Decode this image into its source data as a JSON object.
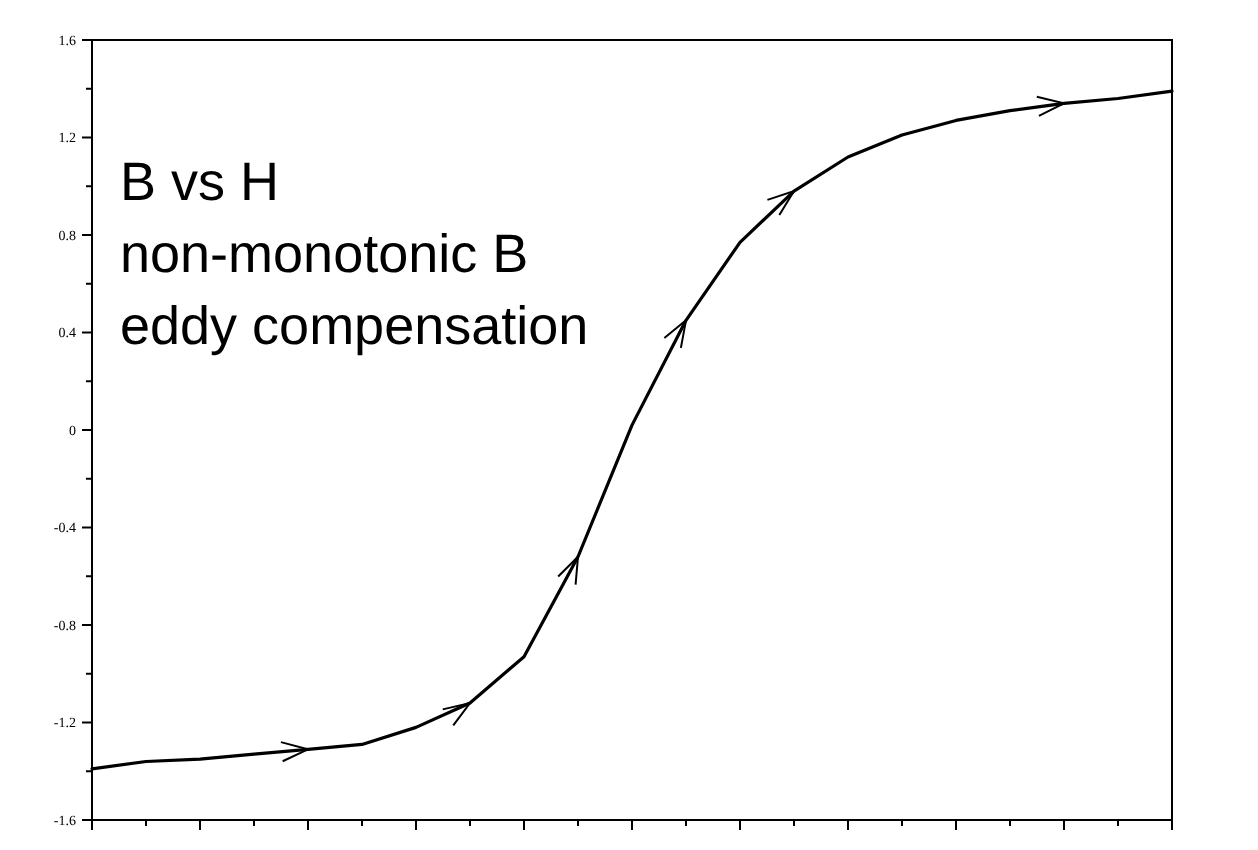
{
  "chart_data": {
    "type": "line",
    "annotations": [
      "B vs H",
      "non-monotonic B",
      "eddy compensation"
    ],
    "categories": [
      null,
      null,
      null,
      null,
      null,
      null,
      null,
      null,
      null,
      null,
      null,
      null,
      null,
      null,
      null,
      null,
      null,
      null,
      null,
      null,
      null
    ],
    "series": [
      {
        "color": "#000000",
        "values": [
          -1.39,
          -1.36,
          -1.35,
          -1.33,
          -1.31,
          -1.29,
          -1.22,
          -1.12,
          -0.93,
          -0.52,
          0.02,
          0.45,
          0.77,
          0.98,
          1.12,
          1.21,
          1.27,
          1.31,
          1.34,
          1.36,
          1.39
        ]
      }
    ],
    "ylim": [
      -1.6,
      1.6
    ],
    "yticks": [
      -1.6,
      -1.2,
      -0.8,
      -0.4,
      0,
      0.4,
      0.8,
      1.2,
      1.6
    ],
    "tick_labels": "y",
    "grid": false,
    "marker": "none",
    "line_style": "solid"
  }
}
